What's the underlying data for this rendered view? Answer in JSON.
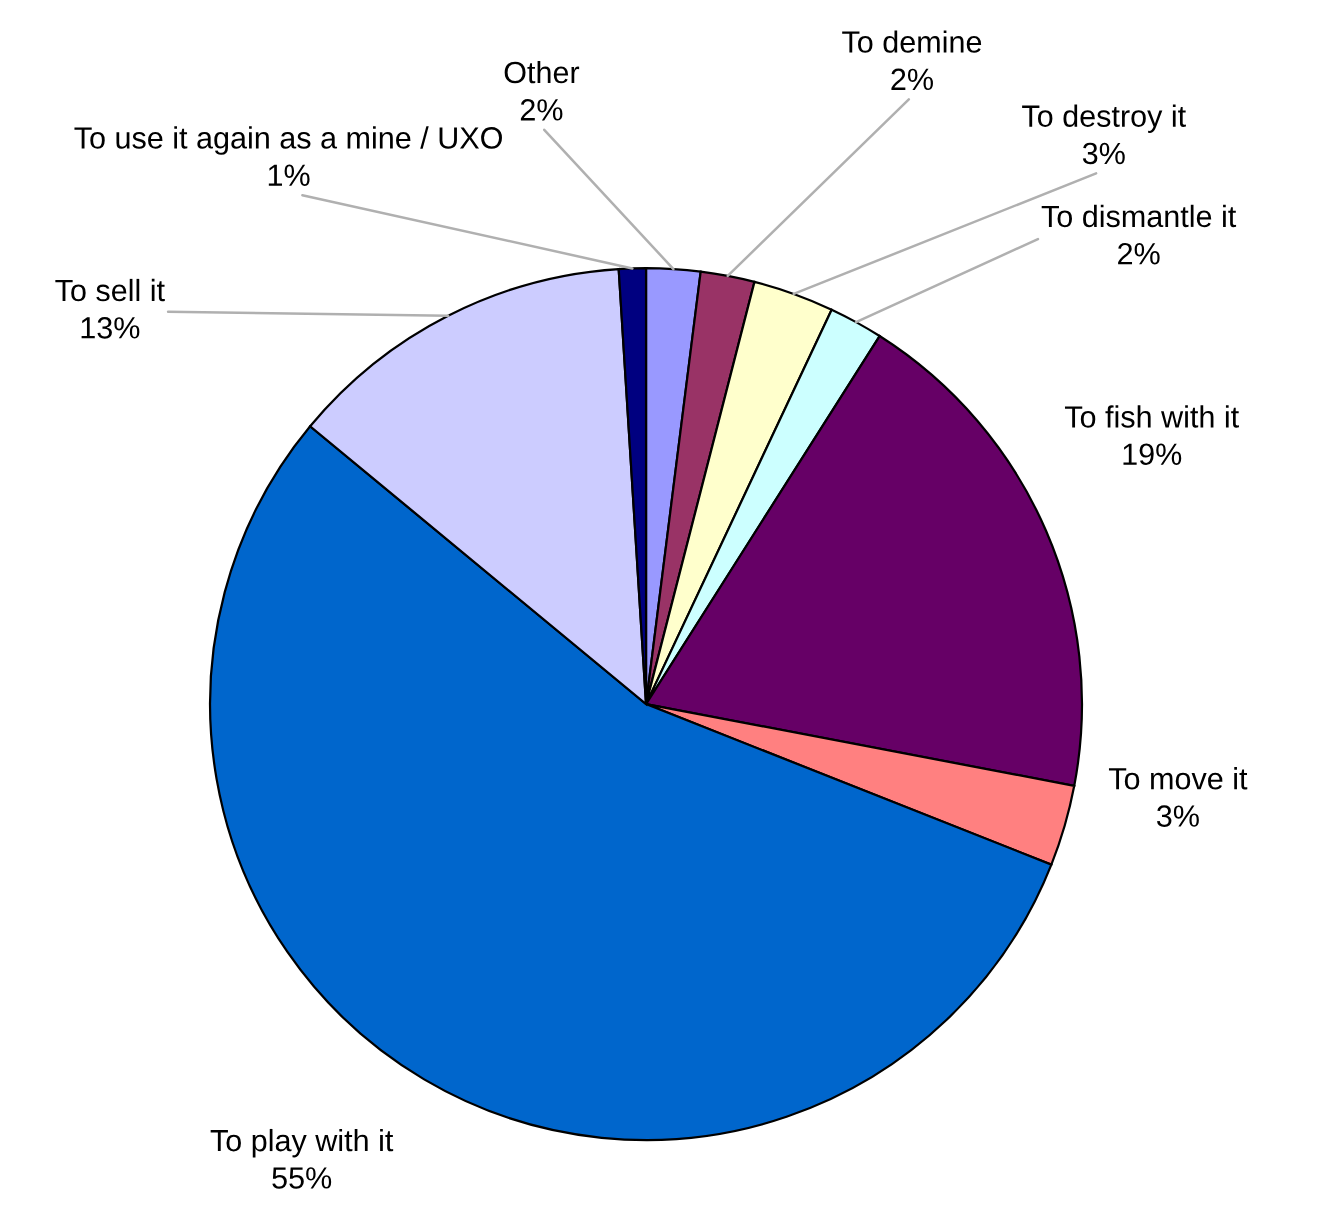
{
  "chart_data": {
    "type": "pie",
    "categories": [
      "Other",
      "To demine",
      "To destroy it",
      "To dismantle it",
      "To fish with it",
      "To move it",
      "To play with it",
      "To sell it",
      "To use it again as a mine / UXO"
    ],
    "values": [
      2,
      2,
      3,
      2,
      19,
      3,
      55,
      13,
      1
    ],
    "value_labels": [
      "2%",
      "2%",
      "3%",
      "2%",
      "19%",
      "3%",
      "55%",
      "13%",
      "1%"
    ],
    "colors": [
      "#9999ff",
      "#993366",
      "#ffffcc",
      "#ccffff",
      "#660066",
      "#ff8080",
      "#0066cc",
      "#ccccff",
      "#000080"
    ],
    "legend": false
  }
}
